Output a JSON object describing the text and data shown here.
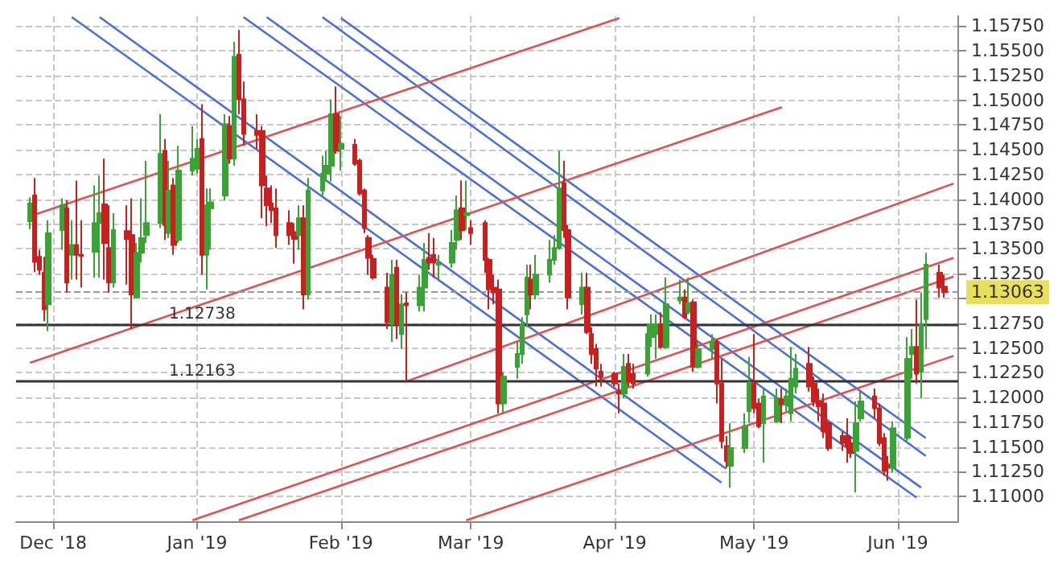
{
  "chart_data": {
    "type": "candlestick",
    "colors": [
      "#3aa335",
      "#c8201e",
      "#c8201e",
      "#c8201e",
      "#3aa335",
      "#3aa335",
      "#c8201e",
      "#3aa335",
      "#c8201e",
      "#c8201e",
      "#3aa335",
      "#3aa335",
      "#c8201e",
      "#c8201e",
      "#3aa335",
      "#c8201e",
      "#c8201e",
      "#3aa335",
      "#3aa335",
      "#3aa335",
      "#3aa335",
      "#c8201e",
      "#3aa335",
      "#c8201e",
      "#3aa335",
      "#3aa335",
      "#3aa335",
      "#c8201e",
      "#3aa335",
      "#3aa335",
      "#3aa335",
      "#c8201e",
      "#3aa335",
      "#c8201e",
      "#c8201e",
      "#c8201e",
      "#c8201e",
      "#c8201e",
      "#c8201e",
      "#c8201e",
      "#c8201e",
      "#c8201e",
      "#3aa335",
      "#c8201e",
      "#3aa335",
      "#3aa335",
      "#3aa335",
      "#3aa335",
      "#c8201e",
      "#3aa335",
      "#c8201e",
      "#c8201e",
      "#c8201e",
      "#c8201e",
      "#c8201e",
      "#c8201e",
      "#3aa335",
      "#c8201e",
      "#3aa335",
      "#c8201e",
      "#3aa335",
      "#3aa335",
      "#c8201e",
      "#c8201e",
      "#3aa335",
      "#3aa335",
      "#3aa335",
      "#c8201e",
      "#3aa335",
      "#c8201e",
      "#c8201e",
      "#c8201e",
      "#c8201e",
      "#c8201e",
      "#3aa335",
      "#3aa335",
      "#3aa335",
      "#3aa335",
      "#c8201e",
      "#3aa335",
      "#3aa335",
      "#3aa335",
      "#3aa335",
      "#c8201e",
      "#c8201e",
      "#3aa335",
      "#c8201e",
      "#c8201e",
      "#c8201e",
      "#c8201e",
      "#c8201e",
      "#c8201e",
      "#3aa335",
      "#c8201e",
      "#c8201e",
      "#3aa335",
      "#3aa335",
      "#3aa335",
      "#c8201e",
      "#3aa335",
      "#3aa335",
      "#c8201e",
      "#3aa335",
      "#c8201e",
      "#3aa335",
      "#3aa335",
      "#c8201e",
      "#c8201e",
      "#c8201e",
      "#3aa335",
      "#3aa335",
      "#3aa335",
      "#c8201e",
      "#c8201e",
      "#3aa335",
      "#3aa335",
      "#c8201e",
      "#3aa335",
      "#3aa335",
      "#3aa335",
      "#c8201e",
      "#c8201e",
      "#c8201e",
      "#c8201e",
      "#c8201e",
      "#c8201e",
      "#c8201e",
      "#c8201e",
      "#3aa335",
      "#3aa335",
      "#c8201e",
      "#c8201e",
      "#c8201e",
      "#c8201e",
      "#3aa335",
      "#3aa335",
      "#3aa335",
      "#c8201e",
      "#3aa335",
      "#3aa335",
      "#c8201e",
      "#c8201e"
    ],
    "x": [
      "2018-11-26",
      "2018-11-27",
      "2018-11-28",
      "2018-11-29",
      "2018-11-30",
      "2018-12-03",
      "2018-12-04",
      "2018-12-05",
      "2018-12-06",
      "2018-12-07",
      "2018-12-10",
      "2018-12-11",
      "2018-12-12",
      "2018-12-13",
      "2018-12-14",
      "2018-12-17",
      "2018-12-18",
      "2018-12-19",
      "2018-12-20",
      "2018-12-21",
      "2018-12-24",
      "2018-12-25",
      "2018-12-26",
      "2018-12-27",
      "2018-12-28",
      "2018-12-31",
      "2019-01-01",
      "2019-01-02",
      "2019-01-03",
      "2019-01-04",
      "2019-01-07",
      "2019-01-08",
      "2019-01-09",
      "2019-01-10",
      "2019-01-11",
      "2019-01-14",
      "2019-01-15",
      "2019-01-16",
      "2019-01-17",
      "2019-01-18",
      "2019-01-21",
      "2019-01-22",
      "2019-01-23",
      "2019-01-24",
      "2019-01-25",
      "2019-01-28",
      "2019-01-29",
      "2019-01-30",
      "2019-01-31",
      "2019-02-01",
      "2019-02-04",
      "2019-02-05",
      "2019-02-06",
      "2019-02-07",
      "2019-02-08",
      "2019-02-11",
      "2019-02-12",
      "2019-02-13",
      "2019-02-14",
      "2019-02-15",
      "2019-02-18",
      "2019-02-19",
      "2019-02-20",
      "2019-02-21",
      "2019-02-22",
      "2019-02-25",
      "2019-02-26",
      "2019-02-27",
      "2019-02-28",
      "2019-03-01",
      "2019-03-04",
      "2019-03-05",
      "2019-03-06",
      "2019-03-07",
      "2019-03-08",
      "2019-03-11",
      "2019-03-12",
      "2019-03-13",
      "2019-03-14",
      "2019-03-15",
      "2019-03-18",
      "2019-03-19",
      "2019-03-20",
      "2019-03-21",
      "2019-03-22",
      "2019-03-25",
      "2019-03-26",
      "2019-03-27",
      "2019-03-28",
      "2019-03-29",
      "2019-04-01",
      "2019-04-02",
      "2019-04-03",
      "2019-04-04",
      "2019-04-05",
      "2019-04-08",
      "2019-04-09",
      "2019-04-10",
      "2019-04-11",
      "2019-04-12",
      "2019-04-15",
      "2019-04-16",
      "2019-04-17",
      "2019-04-18",
      "2019-04-19",
      "2019-04-22",
      "2019-04-23",
      "2019-04-24",
      "2019-04-25",
      "2019-04-26",
      "2019-04-29",
      "2019-04-30",
      "2019-05-01",
      "2019-05-02",
      "2019-05-03",
      "2019-05-06",
      "2019-05-07",
      "2019-05-08",
      "2019-05-09",
      "2019-05-10",
      "2019-05-13",
      "2019-05-14",
      "2019-05-15",
      "2019-05-16",
      "2019-05-17",
      "2019-05-20",
      "2019-05-21",
      "2019-05-22",
      "2019-05-23",
      "2019-05-24",
      "2019-05-27",
      "2019-05-28",
      "2019-05-29",
      "2019-05-30",
      "2019-05-31",
      "2019-06-03",
      "2019-06-04",
      "2019-06-05",
      "2019-06-06",
      "2019-06-07",
      "2019-06-10",
      "2019-06-11"
    ],
    "ohlc": [
      [
        1.1378,
        1.1402,
        1.137,
        1.1396
      ],
      [
        1.1404,
        1.14215,
        1.13265,
        1.1337
      ],
      [
        1.1342,
        1.1349,
        1.1324,
        1.1329
      ],
      [
        1.1326,
        1.1342,
        1.1277,
        1.1289
      ],
      [
        1.1294,
        1.1379,
        1.1267,
        1.1366
      ],
      [
        1.1369,
        1.1401,
        1.1349,
        1.1394
      ],
      [
        1.1391,
        1.1399,
        1.1306,
        1.1316
      ],
      [
        1.1344,
        1.1379,
        1.1319,
        1.1354
      ],
      [
        1.1354,
        1.1419,
        1.1319,
        1.1344
      ],
      [
        1.1344,
        1.1379,
        1.1311,
        1.1343
      ],
      [
        1.1347,
        1.1414,
        1.1321,
        1.1376
      ],
      [
        1.1376,
        1.1424,
        1.1321,
        1.1386
      ],
      [
        1.1395,
        1.1441,
        1.1319,
        1.1356
      ],
      [
        1.1351,
        1.1394,
        1.1306,
        1.1316
      ],
      [
        1.1316,
        1.1386,
        1.1311,
        1.1369
      ],
      [
        1.1368,
        1.1394,
        1.1314,
        1.136
      ],
      [
        1.1364,
        1.1401,
        1.1269,
        1.1304
      ],
      [
        1.1301,
        1.1356,
        1.1301,
        1.1346
      ],
      [
        1.1346,
        1.1401,
        1.1336,
        1.1361
      ],
      [
        1.1364,
        1.1439,
        1.1356,
        1.1376
      ],
      [
        1.1376,
        1.1486,
        1.1371,
        1.1446
      ],
      [
        1.1449,
        1.1461,
        1.1359,
        1.1374
      ],
      [
        1.1366,
        1.1439,
        1.1361,
        1.1409
      ],
      [
        1.1414,
        1.14215,
        1.1344,
        1.1354
      ],
      [
        1.1359,
        1.1454,
        1.1356,
        1.1429
      ],
      [
        1.1429,
        1.1474,
        1.1424,
        1.1441
      ],
      [
        1.1431,
        1.1461,
        1.1426,
        1.1451
      ],
      [
        1.1461,
        1.1496,
        1.1324,
        1.1344
      ],
      [
        1.1344,
        1.1411,
        1.1309,
        1.1394
      ],
      [
        1.1391,
        1.1411,
        1.1349,
        1.1397
      ],
      [
        1.1404,
        1.1486,
        1.1399,
        1.1476
      ],
      [
        1.1474,
        1.1484,
        1.1436,
        1.1441
      ],
      [
        1.1441,
        1.1559,
        1.1434,
        1.1544
      ],
      [
        1.1546,
        1.1571,
        1.1486,
        1.1501
      ],
      [
        1.1501,
        1.1519,
        1.1454,
        1.1466
      ],
      [
        1.1469,
        1.1486,
        1.1451,
        1.1465
      ],
      [
        1.1469,
        1.1474,
        1.1381,
        1.1414
      ],
      [
        1.1411,
        1.1424,
        1.1373,
        1.1394
      ],
      [
        1.1396,
        1.1414,
        1.1376,
        1.1389
      ],
      [
        1.1391,
        1.1411,
        1.1351,
        1.1364
      ],
      [
        1.1376,
        1.1389,
        1.1354,
        1.1364
      ],
      [
        1.1367,
        1.1376,
        1.1335,
        1.136
      ],
      [
        1.1364,
        1.1394,
        1.1349,
        1.1381
      ],
      [
        1.1381,
        1.1394,
        1.1289,
        1.1304
      ],
      [
        1.1304,
        1.14215,
        1.1299,
        1.1409
      ],
      [
        1.1409,
        1.1444,
        1.1404,
        1.1426
      ],
      [
        1.1426,
        1.1449,
        1.1418,
        1.1434
      ],
      [
        1.1434,
        1.1501,
        1.1418,
        1.1486
      ],
      [
        1.1486,
        1.1514,
        1.1446,
        1.1449
      ],
      [
        1.1451,
        1.1484,
        1.1429,
        1.1456
      ],
      [
        1.1455,
        1.1461,
        1.1434,
        1.1436
      ],
      [
        1.1439,
        1.1441,
        1.1404,
        1.1406
      ],
      [
        1.1409,
        1.1411,
        1.1366,
        1.1371
      ],
      [
        1.1361,
        1.1364,
        1.1324,
        1.1341
      ],
      [
        1.134,
        1.1344,
        1.1319,
        1.1321
      ],
      [
        1.1311,
        1.1326,
        1.1269,
        1.1276
      ],
      [
        1.1274,
        1.1339,
        1.1256,
        1.1324
      ],
      [
        1.1331,
        1.1339,
        1.1259,
        1.1274
      ],
      [
        1.1264,
        1.1304,
        1.1249,
        1.1294
      ],
      [
        1.1295,
        1.1306,
        1.12163,
        1.1293
      ],
      [
        1.1293,
        1.1324,
        1.1287,
        1.1311
      ],
      [
        1.1311,
        1.1356,
        1.1287,
        1.1339
      ],
      [
        1.1341,
        1.1366,
        1.1329,
        1.1336
      ],
      [
        1.1344,
        1.1361,
        1.1321,
        1.1336
      ],
      [
        1.1334,
        1.1344,
        1.1319,
        1.1336
      ],
      [
        1.1336,
        1.1369,
        1.1331,
        1.1356
      ],
      [
        1.1359,
        1.1404,
        1.1349,
        1.1389
      ],
      [
        1.1391,
        1.1419,
        1.1359,
        1.1369
      ],
      [
        1.1384,
        1.1419,
        1.1369,
        1.1386
      ],
      [
        1.1371,
        1.1379,
        1.1354,
        1.1366
      ],
      [
        1.1376,
        1.1379,
        1.1326,
        1.1339
      ],
      [
        1.1339,
        1.1341,
        1.1289,
        1.1309
      ],
      [
        1.1311,
        1.1324,
        1.1294,
        1.1306
      ],
      [
        1.1309,
        1.1319,
        1.1184,
        1.1194
      ],
      [
        1.1194,
        1.1226,
        1.1184,
        1.1221
      ],
      [
        1.1231,
        1.1256,
        1.1219,
        1.1244
      ],
      [
        1.1244,
        1.1281,
        1.1234,
        1.1274
      ],
      [
        1.1284,
        1.1334,
        1.1271,
        1.1321
      ],
      [
        1.1319,
        1.1334,
        1.1289,
        1.1304
      ],
      [
        1.1304,
        1.1344,
        1.1299,
        1.1324
      ],
      [
        1.1324,
        1.1359,
        1.1316,
        1.1339
      ],
      [
        1.1339,
        1.1364,
        1.1334,
        1.1351
      ],
      [
        1.1351,
        1.1449,
        1.1349,
        1.1411
      ],
      [
        1.1416,
        1.1439,
        1.1361,
        1.1369
      ],
      [
        1.1369,
        1.1374,
        1.1289,
        1.1301
      ],
      [
        1.1294,
        1.1326,
        1.1284,
        1.1311
      ],
      [
        1.1311,
        1.1326,
        1.1264,
        1.1266
      ],
      [
        1.1264,
        1.1271,
        1.1234,
        1.1244
      ],
      [
        1.1249,
        1.1254,
        1.1211,
        1.1229
      ],
      [
        1.1226,
        1.1234,
        1.1211,
        1.1221
      ],
      [
        1.1224,
        1.1226,
        1.1211,
        1.1214
      ],
      [
        1.1206,
        1.1214,
        1.1184,
        1.1204
      ],
      [
        1.1204,
        1.1244,
        1.1199,
        1.1231
      ],
      [
        1.1234,
        1.1244,
        1.1211,
        1.1216
      ],
      [
        1.1224,
        1.1234,
        1.1209,
        1.1214
      ],
      [
        1.1224,
        1.1274,
        1.1221,
        1.1264
      ],
      [
        1.1261,
        1.1284,
        1.1251,
        1.1274
      ],
      [
        1.1264,
        1.1284,
        1.1239,
        1.1274
      ],
      [
        1.1274,
        1.1286,
        1.1249,
        1.1251
      ],
      [
        1.1251,
        1.1321,
        1.1249,
        1.1294
      ],
      [
        1.1298,
        1.1319,
        1.1294,
        1.1301
      ],
      [
        1.1301,
        1.1309,
        1.1279,
        1.1281
      ],
      [
        1.1286,
        1.1321,
        1.1284,
        1.1295
      ],
      [
        1.1296,
        1.1299,
        1.1226,
        1.1231
      ],
      [
        1.1231,
        1.1256,
        1.1229,
        1.1249
      ],
      [
        1.1249,
        1.1264,
        1.1239,
        1.1256
      ],
      [
        1.1256,
        1.1259,
        1.1194,
        1.1214
      ],
      [
        1.1214,
        1.1239,
        1.1149,
        1.1156
      ],
      [
        1.1151,
        1.1161,
        1.1129,
        1.1136
      ],
      [
        1.1131,
        1.1174,
        1.1109,
        1.1149
      ],
      [
        1.1149,
        1.1184,
        1.1144,
        1.1171
      ],
      [
        1.1186,
        1.1241,
        1.1174,
        1.1214
      ],
      [
        1.1214,
        1.1264,
        1.1184,
        1.1189
      ],
      [
        1.1194,
        1.1199,
        1.1169,
        1.1171
      ],
      [
        1.1174,
        1.1209,
        1.1134,
        1.1201
      ],
      [
        1.1176,
        1.1209,
        1.1174,
        1.1199
      ],
      [
        1.1198,
        1.1209,
        1.1174,
        1.1193
      ],
      [
        1.1193,
        1.1209,
        1.1186,
        1.1201
      ],
      [
        1.1184,
        1.1251,
        1.1176,
        1.1219
      ],
      [
        1.1211,
        1.1244,
        1.1204,
        1.1229
      ],
      [
        1.1234,
        1.1251,
        1.1206,
        1.1211
      ],
      [
        1.1214,
        1.1221,
        1.1191,
        1.1196
      ],
      [
        1.1196,
        1.1209,
        1.1176,
        1.1191
      ],
      [
        1.1194,
        1.1204,
        1.1159,
        1.1166
      ],
      [
        1.1174,
        1.1176,
        1.1146,
        1.1149
      ],
      [
        1.1161,
        1.1166,
        1.1146,
        1.1154
      ],
      [
        1.1161,
        1.1179,
        1.1134,
        1.1151
      ],
      [
        1.1154,
        1.1161,
        1.1139,
        1.1144
      ],
      [
        1.1146,
        1.1196,
        1.1104,
        1.1174
      ],
      [
        1.1179,
        1.1206,
        1.1176,
        1.1196
      ],
      [
        1.1201,
        1.1209,
        1.1179,
        1.1189
      ],
      [
        1.1189,
        1.1194,
        1.1151,
        1.1154
      ],
      [
        1.1159,
        1.1164,
        1.1121,
        1.1126
      ],
      [
        1.1131,
        1.1141,
        1.1116,
        1.1129
      ],
      [
        1.1129,
        1.1176,
        1.1124,
        1.1169
      ],
      [
        1.1159,
        1.1261,
        1.1156,
        1.1239
      ],
      [
        1.1244,
        1.1269,
        1.1219,
        1.1251
      ],
      [
        1.1251,
        1.1299,
        1.1214,
        1.1224
      ],
      [
        1.1226,
        1.1306,
        1.1199,
        1.1274
      ],
      [
        1.1279,
        1.1346,
        1.1249,
        1.1334
      ],
      [
        1.1326,
        1.1334,
        1.1301,
        1.1311
      ],
      [
        1.1312,
        1.1324,
        1.1301,
        1.13063
      ]
    ],
    "series": [
      {
        "type": "line",
        "color": "#4a6fd6",
        "x": [
          "2018-12-05",
          "2019-04-24"
        ],
        "values": [
          1.1584,
          1.1114
        ]
      },
      {
        "type": "line",
        "color": "#4a6fd6",
        "x": [
          "2018-12-11",
          "2019-04-25"
        ],
        "values": [
          1.1584,
          1.1128
        ]
      },
      {
        "type": "line",
        "color": "#4a6fd6",
        "x": [
          "2019-02-01",
          "2019-06-07"
        ],
        "values": [
          1.1583,
          1.1159
        ]
      },
      {
        "type": "line",
        "color": "#4a6fd6",
        "x": [
          "2019-01-28",
          "2019-06-07"
        ],
        "values": [
          1.1584,
          1.1141
        ]
      },
      {
        "type": "line",
        "color": "#4a6fd6",
        "x": [
          "2019-01-16",
          "2019-06-06"
        ],
        "values": [
          1.1584,
          1.1109
        ]
      },
      {
        "type": "line",
        "color": "#4a6fd6",
        "x": [
          "2019-01-11",
          "2019-06-05"
        ],
        "values": [
          1.1584,
          1.1099
        ]
      },
      {
        "type": "line",
        "color": "#e05050",
        "x": [
          "2018-11-26",
          "2019-04-02"
        ],
        "values": [
          1.1383,
          1.1583
        ]
      },
      {
        "type": "line",
        "color": "#e05050",
        "x": [
          "2018-11-26",
          "2019-05-07"
        ],
        "values": [
          1.1235,
          1.1493
        ]
      },
      {
        "type": "line",
        "color": "#e05050",
        "x": [
          "2019-02-15",
          "2019-06-13"
        ],
        "values": [
          1.1216,
          1.1416
        ]
      },
      {
        "type": "line",
        "color": "#e05050",
        "x": [
          "2018-12-31",
          "2019-06-13"
        ],
        "values": [
          1.1076,
          1.1341
        ]
      },
      {
        "type": "line",
        "color": "#e05050",
        "x": [
          "2019-01-10",
          "2019-06-13"
        ],
        "values": [
          1.1076,
          1.1322
        ]
      },
      {
        "type": "line",
        "color": "#e05050",
        "x": [
          "2019-02-28",
          "2019-06-13"
        ],
        "values": [
          1.1076,
          1.1242
        ]
      }
    ],
    "xlim": [
      "2018-11-23",
      "2019-06-14"
    ],
    "xticks": [
      {
        "value": "2018-12-01",
        "label": "Dec '18"
      },
      {
        "value": "2019-01-01",
        "label": "Jan '19"
      },
      {
        "value": "2019-02-01",
        "label": "Feb '19"
      },
      {
        "value": "2019-03-01",
        "label": "Mar '19"
      },
      {
        "value": "2019-04-01",
        "label": "Apr '19"
      },
      {
        "value": "2019-05-01",
        "label": "May '19"
      },
      {
        "value": "2019-06-01",
        "label": "Jun '19"
      }
    ],
    "ylim": [
      1.1075,
      1.1585
    ],
    "yticks": [
      {
        "value": 1.11,
        "label": "1.11000"
      },
      {
        "value": 1.1125,
        "label": "1.11250"
      },
      {
        "value": 1.115,
        "label": "1.11500"
      },
      {
        "value": 1.1175,
        "label": "1.11750"
      },
      {
        "value": 1.12,
        "label": "1.12000"
      },
      {
        "value": 1.1225,
        "label": "1.12250"
      },
      {
        "value": 1.125,
        "label": "1.12500"
      },
      {
        "value": 1.1275,
        "label": "1.12750"
      },
      {
        "value": 1.13,
        "label": null
      },
      {
        "value": 1.1325,
        "label": "1.13250"
      },
      {
        "value": 1.135,
        "label": "1.13500"
      },
      {
        "value": 1.1375,
        "label": "1.13750"
      },
      {
        "value": 1.14,
        "label": "1.14000"
      },
      {
        "value": 1.1425,
        "label": "1.14250"
      },
      {
        "value": 1.145,
        "label": "1.14500"
      },
      {
        "value": 1.1475,
        "label": "1.14750"
      },
      {
        "value": 1.15,
        "label": "1.15000"
      },
      {
        "value": 1.1525,
        "label": "1.15250"
      },
      {
        "value": 1.155,
        "label": "1.15500"
      },
      {
        "value": 1.1575,
        "label": "1.15750"
      }
    ],
    "ref_lines": [
      {
        "axis": "y",
        "value": 1.12738,
        "label": "1.12738",
        "color": "#333333",
        "line_style": "solid"
      },
      {
        "axis": "y",
        "value": 1.12163,
        "label": "1.12163",
        "color": "#333333",
        "line_style": "solid"
      },
      {
        "axis": "y",
        "value": 1.13063,
        "label": "1.13063",
        "color": "#999999",
        "line_style": "dashed"
      }
    ],
    "grid": true,
    "marker": "none"
  }
}
